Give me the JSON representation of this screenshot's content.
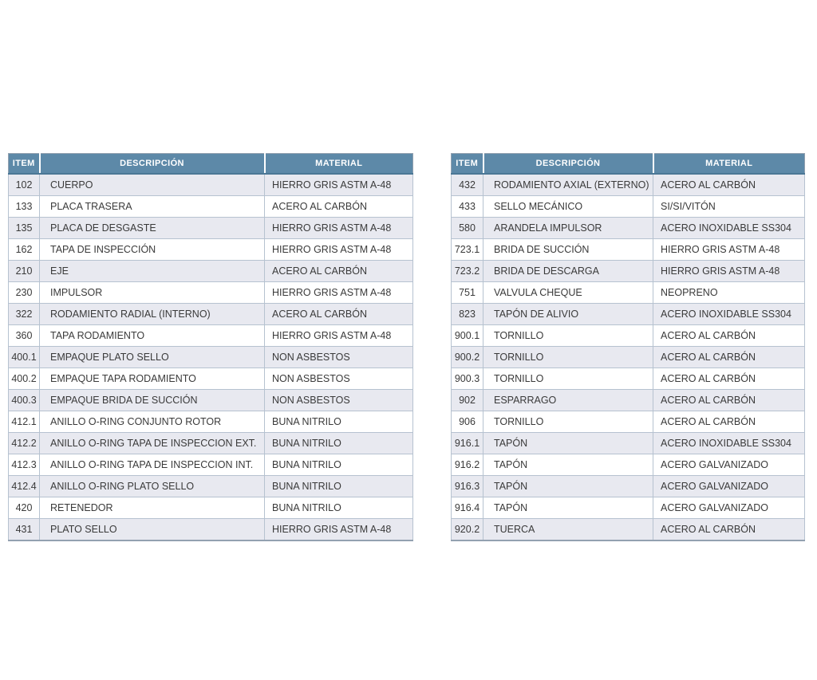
{
  "page": {
    "background": "#ffffff"
  },
  "colors": {
    "header_bg": "#5d89a8",
    "header_text": "#ffffff",
    "header_bottom_border": "#4b7795",
    "alt_row_bg": "#e8e9f0",
    "row_bg": "#ffffff",
    "cell_border": "#b6c2d0",
    "outer_border": "#93a1b0",
    "body_text": "#3a3a3a"
  },
  "tables": [
    {
      "id": "left",
      "headers": [
        "ITEM",
        "DESCRIPCIÓN",
        "MATERIAL"
      ],
      "rows": [
        [
          "102",
          "CUERPO",
          "HIERRO GRIS ASTM A-48"
        ],
        [
          "133",
          "PLACA TRASERA",
          "ACERO AL CARBÓN"
        ],
        [
          "135",
          "PLACA DE DESGASTE",
          "HIERRO GRIS ASTM A-48"
        ],
        [
          "162",
          "TAPA DE INSPECCIÓN",
          "HIERRO GRIS ASTM A-48"
        ],
        [
          "210",
          "EJE",
          "ACERO AL CARBÓN"
        ],
        [
          "230",
          "IMPULSOR",
          "HIERRO GRIS ASTM A-48"
        ],
        [
          "322",
          "RODAMIENTO RADIAL (INTERNO)",
          "ACERO AL CARBÓN"
        ],
        [
          "360",
          "TAPA RODAMIENTO",
          "HIERRO GRIS ASTM A-48"
        ],
        [
          "400.1",
          "EMPAQUE PLATO SELLO",
          "NON ASBESTOS"
        ],
        [
          "400.2",
          "EMPAQUE TAPA RODAMIENTO",
          "NON ASBESTOS"
        ],
        [
          "400.3",
          "EMPAQUE BRIDA DE SUCCIÓN",
          "NON ASBESTOS"
        ],
        [
          "412.1",
          "ANILLO O-RING CONJUNTO ROTOR",
          "BUNA NITRILO"
        ],
        [
          "412.2",
          "ANILLO O-RING TAPA DE INSPECCION EXT.",
          "BUNA NITRILO"
        ],
        [
          "412.3",
          "ANILLO O-RING TAPA DE INSPECCION INT.",
          "BUNA NITRILO"
        ],
        [
          "412.4",
          "ANILLO O-RING PLATO SELLO",
          "BUNA NITRILO"
        ],
        [
          "420",
          "RETENEDOR",
          "BUNA NITRILO"
        ],
        [
          "431",
          "PLATO SELLO",
          "HIERRO GRIS ASTM A-48"
        ]
      ]
    },
    {
      "id": "right",
      "headers": [
        "ITEM",
        "DESCRIPCIÓN",
        "MATERIAL"
      ],
      "rows": [
        [
          "432",
          "RODAMIENTO AXIAL (EXTERNO)",
          "ACERO AL CARBÓN"
        ],
        [
          "433",
          "SELLO MECÁNICO",
          "SI/SI/VITÓN"
        ],
        [
          "580",
          "ARANDELA IMPULSOR",
          "ACERO INOXIDABLE SS304"
        ],
        [
          "723.1",
          "BRIDA DE SUCCIÓN",
          "HIERRO GRIS ASTM A-48"
        ],
        [
          "723.2",
          "BRIDA DE DESCARGA",
          "HIERRO GRIS ASTM A-48"
        ],
        [
          "751",
          "VALVULA CHEQUE",
          "NEOPRENO"
        ],
        [
          "823",
          "TAPÓN DE ALIVIO",
          "ACERO INOXIDABLE SS304"
        ],
        [
          "900.1",
          "TORNILLO",
          "ACERO AL CARBÓN"
        ],
        [
          "900.2",
          "TORNILLO",
          "ACERO AL CARBÓN"
        ],
        [
          "900.3",
          "TORNILLO",
          "ACERO AL CARBÓN"
        ],
        [
          "902",
          "ESPARRAGO",
          "ACERO AL CARBÓN"
        ],
        [
          "906",
          "TORNILLO",
          "ACERO AL CARBÓN"
        ],
        [
          "916.1",
          "TAPÓN",
          "ACERO INOXIDABLE SS304"
        ],
        [
          "916.2",
          "TAPÓN",
          "ACERO GALVANIZADO"
        ],
        [
          "916.3",
          "TAPÓN",
          "ACERO GALVANIZADO"
        ],
        [
          "916.4",
          "TAPÓN",
          "ACERO GALVANIZADO"
        ],
        [
          "920.2",
          "TUERCA",
          "ACERO AL CARBÓN"
        ]
      ]
    }
  ]
}
